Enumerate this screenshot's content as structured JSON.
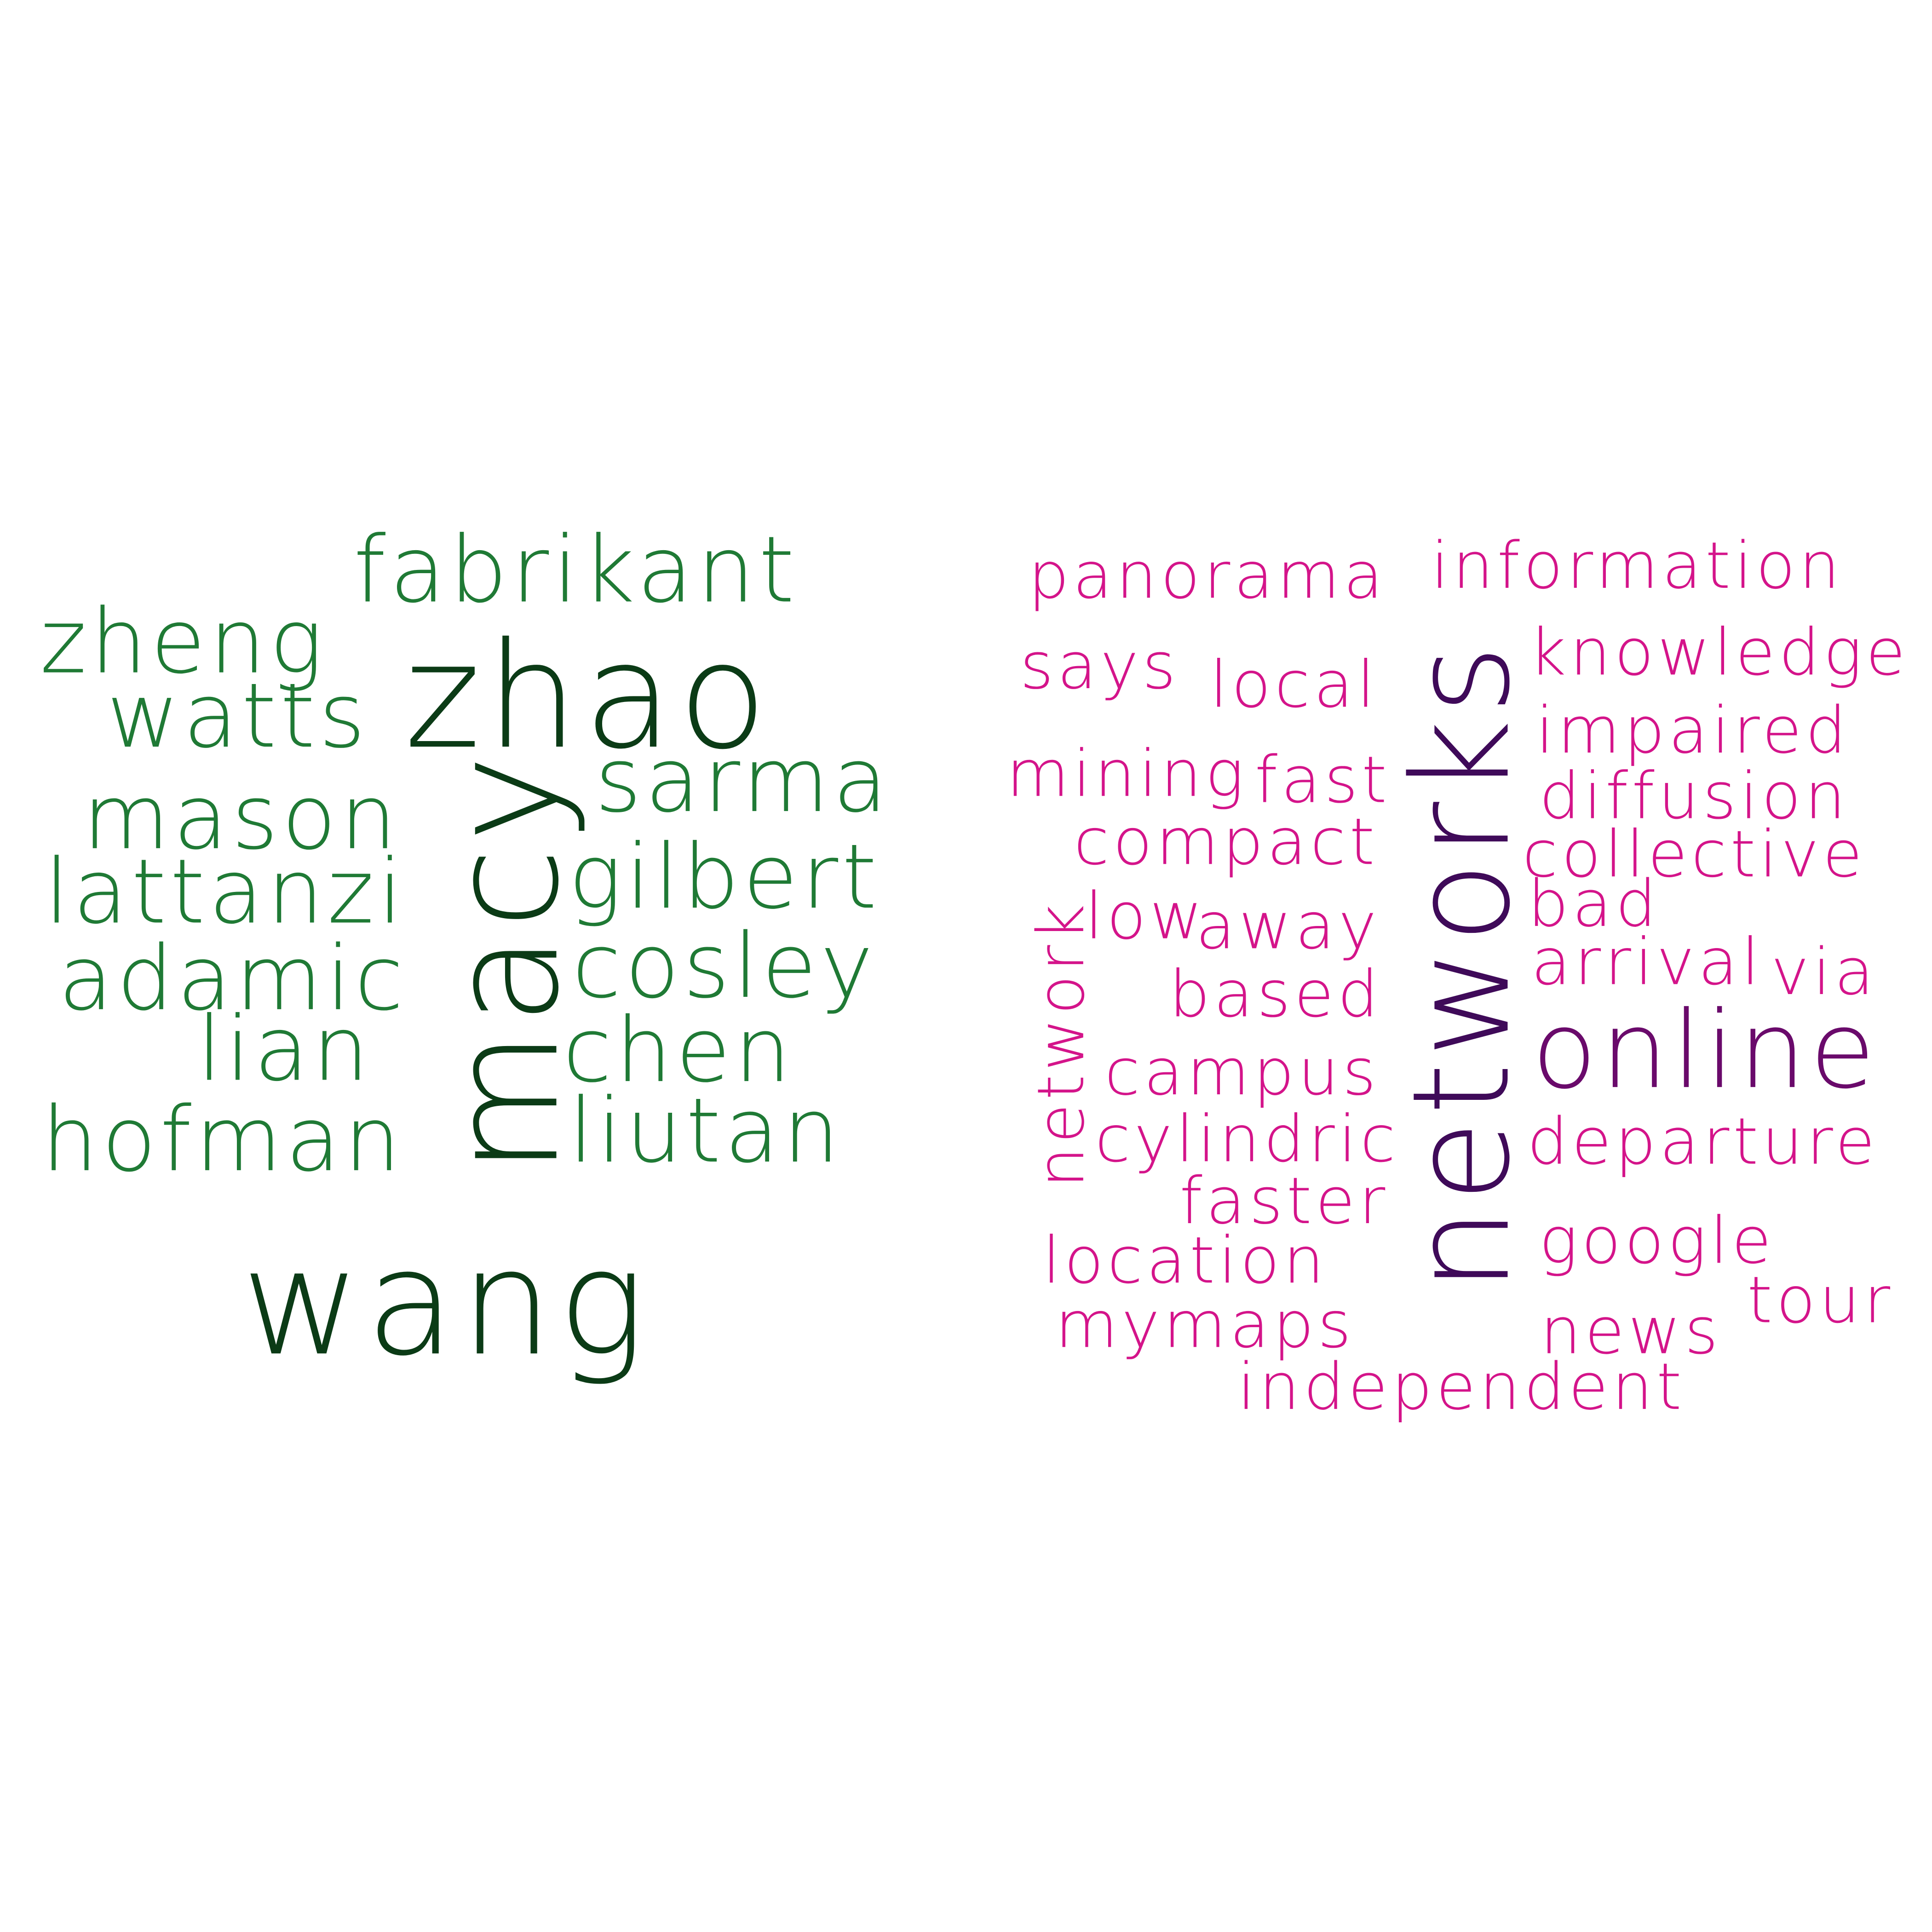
{
  "clouds": [
    {
      "id": "left",
      "words": [
        {
          "text": "fabrikant",
          "color": "#1f7a35",
          "size": "m",
          "rotate": false
        },
        {
          "text": "zheng",
          "color": "#1f7a35",
          "size": "m",
          "rotate": false
        },
        {
          "text": "zhao",
          "color": "#0b3b16",
          "size": "l",
          "rotate": false
        },
        {
          "text": "watts",
          "color": "#1f7a35",
          "size": "m",
          "rotate": false
        },
        {
          "text": "sarma",
          "color": "#1f7a35",
          "size": "m",
          "rotate": false
        },
        {
          "text": "mason",
          "color": "#1f7a35",
          "size": "m",
          "rotate": false
        },
        {
          "text": "macy",
          "color": "#0b3b16",
          "size": "l",
          "rotate": true
        },
        {
          "text": "gilbert",
          "color": "#1f7a35",
          "size": "m",
          "rotate": false
        },
        {
          "text": "lattanzi",
          "color": "#1f7a35",
          "size": "m",
          "rotate": false
        },
        {
          "text": "cosley",
          "color": "#1f7a35",
          "size": "m",
          "rotate": false
        },
        {
          "text": "adamic",
          "color": "#1f7a35",
          "size": "m",
          "rotate": false
        },
        {
          "text": "chen",
          "color": "#1f7a35",
          "size": "m",
          "rotate": false
        },
        {
          "text": "lian",
          "color": "#1f7a35",
          "size": "m",
          "rotate": false
        },
        {
          "text": "hofman",
          "color": "#1f7a35",
          "size": "m",
          "rotate": false
        },
        {
          "text": "liutan",
          "color": "#1f7a35",
          "size": "m",
          "rotate": false
        },
        {
          "text": "wang",
          "color": "#0b3b16",
          "size": "l",
          "rotate": false
        }
      ]
    },
    {
      "id": "right",
      "words": [
        {
          "text": "information",
          "color": "#d4148a",
          "size": "s",
          "rotate": false
        },
        {
          "text": "panorama",
          "color": "#d4148a",
          "size": "s",
          "rotate": false
        },
        {
          "text": "knowledge",
          "color": "#d4148a",
          "size": "s",
          "rotate": false
        },
        {
          "text": "says",
          "color": "#d4148a",
          "size": "s",
          "rotate": false
        },
        {
          "text": "local",
          "color": "#d4148a",
          "size": "s",
          "rotate": false
        },
        {
          "text": "impaired",
          "color": "#d4148a",
          "size": "s",
          "rotate": false
        },
        {
          "text": "mining",
          "color": "#d4148a",
          "size": "s",
          "rotate": false
        },
        {
          "text": "fast",
          "color": "#d4148a",
          "size": "s",
          "rotate": false
        },
        {
          "text": "diffusion",
          "color": "#d4148a",
          "size": "s",
          "rotate": false
        },
        {
          "text": "compact",
          "color": "#d4148a",
          "size": "s",
          "rotate": false
        },
        {
          "text": "collective",
          "color": "#d4148a",
          "size": "s",
          "rotate": false
        },
        {
          "text": "networks",
          "color": "#3f0a59",
          "size": "l",
          "rotate": true
        },
        {
          "text": "network",
          "color": "#d4148a",
          "size": "s",
          "rotate": true
        },
        {
          "text": "low",
          "color": "#d4148a",
          "size": "s",
          "rotate": false
        },
        {
          "text": "away",
          "color": "#d4148a",
          "size": "s",
          "rotate": false
        },
        {
          "text": "bad",
          "color": "#d4148a",
          "size": "s",
          "rotate": false
        },
        {
          "text": "arrival",
          "color": "#d4148a",
          "size": "s",
          "rotate": false
        },
        {
          "text": "via",
          "color": "#d4148a",
          "size": "s",
          "rotate": false
        },
        {
          "text": "based",
          "color": "#d4148a",
          "size": "s",
          "rotate": false
        },
        {
          "text": "online",
          "color": "#6a0a6b",
          "size": "m",
          "rotate": false
        },
        {
          "text": "campus",
          "color": "#d4148a",
          "size": "s",
          "rotate": false
        },
        {
          "text": "cylindric",
          "color": "#d4148a",
          "size": "s",
          "rotate": false
        },
        {
          "text": "departure",
          "color": "#d4148a",
          "size": "s",
          "rotate": false
        },
        {
          "text": "faster",
          "color": "#d4148a",
          "size": "s",
          "rotate": false
        },
        {
          "text": "location",
          "color": "#d4148a",
          "size": "s",
          "rotate": false
        },
        {
          "text": "google",
          "color": "#d4148a",
          "size": "s",
          "rotate": false
        },
        {
          "text": "mymaps",
          "color": "#d4148a",
          "size": "s",
          "rotate": false
        },
        {
          "text": "tour",
          "color": "#d4148a",
          "size": "s",
          "rotate": false
        },
        {
          "text": "news",
          "color": "#d4148a",
          "size": "s",
          "rotate": false
        },
        {
          "text": "independent",
          "color": "#d4148a",
          "size": "s",
          "rotate": false
        }
      ]
    }
  ]
}
